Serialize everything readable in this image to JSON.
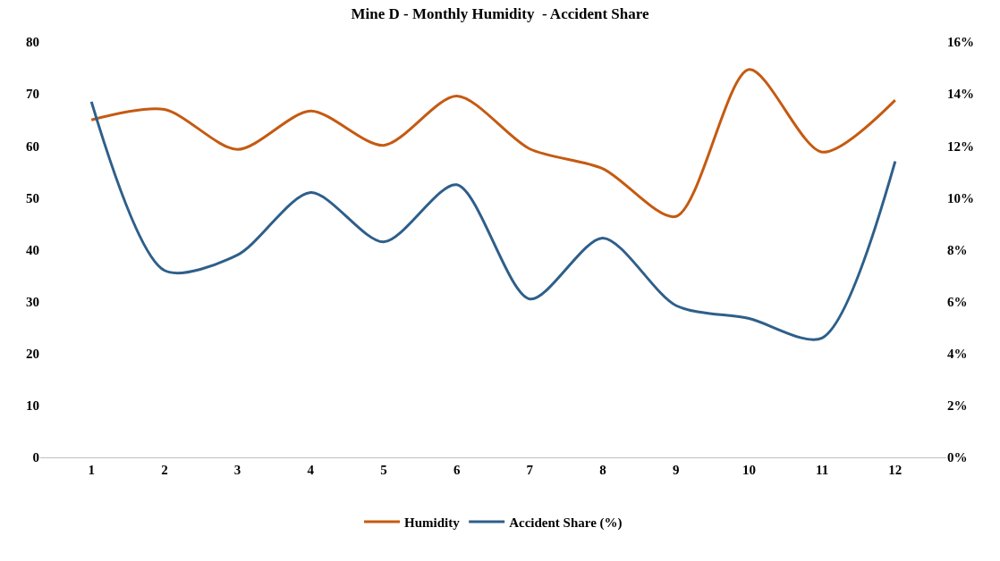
{
  "chart_data": {
    "type": "line",
    "title": "Mine D - Monthly Humidity  - Accident Share",
    "x": [
      1,
      2,
      3,
      4,
      5,
      6,
      7,
      8,
      9,
      10,
      11,
      12
    ],
    "xlim": [
      0.3,
      12.7
    ],
    "xticks": [
      1,
      2,
      3,
      4,
      5,
      6,
      7,
      8,
      9,
      10,
      11,
      12
    ],
    "ylim": [
      0,
      80
    ],
    "yticks": [
      0,
      10,
      20,
      30,
      40,
      50,
      60,
      70,
      80
    ],
    "y2lim": [
      0,
      16
    ],
    "y2ticks": [
      {
        "value": 0,
        "label": "0%"
      },
      {
        "value": 2,
        "label": "2%"
      },
      {
        "value": 4,
        "label": "4%"
      },
      {
        "value": 6,
        "label": "6%"
      },
      {
        "value": 8,
        "label": "8%"
      },
      {
        "value": 10,
        "label": "10%"
      },
      {
        "value": 12,
        "label": "12%"
      },
      {
        "value": 14,
        "label": "14%"
      },
      {
        "value": 16,
        "label": "16%"
      }
    ],
    "series": [
      {
        "name": "Humidity",
        "color": "#c55a11",
        "values": [
          65,
          67,
          59.3,
          66.7,
          60.1,
          69.6,
          59.4,
          55.6,
          46.4,
          74.7,
          58.8,
          68.8
        ]
      },
      {
        "name": "Accident Share (%)",
        "color": "#2e5f8a",
        "axis": "y2",
        "values": [
          13.7,
          7.2,
          7.8,
          10.2,
          8.3,
          10.5,
          6.1,
          8.45,
          5.85,
          5.35,
          4.6,
          11.4
        ]
      }
    ],
    "grid": false,
    "legend": "bottom",
    "marker": "none",
    "line_style": "solid"
  }
}
